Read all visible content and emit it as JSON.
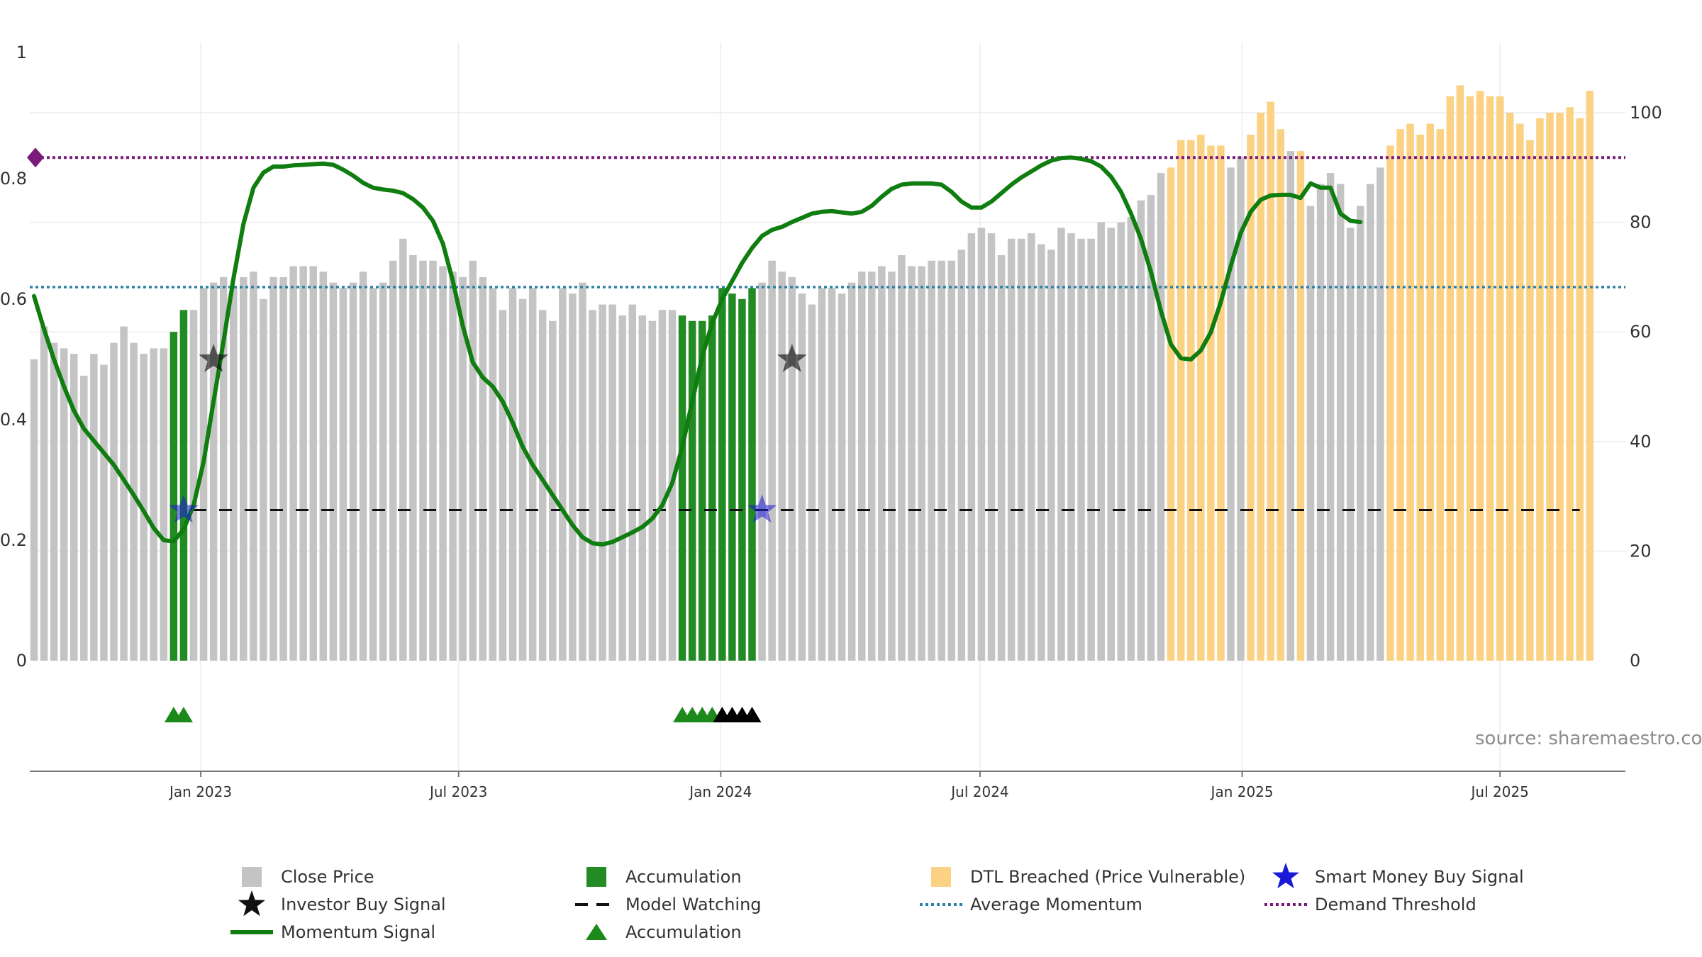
{
  "chart_data": {
    "type": "bar",
    "title": "",
    "source": "source: sharemaestro.com",
    "left_axis": {
      "range": [
        0,
        1
      ],
      "ticks": [
        {
          "v": 0,
          "label": "0"
        },
        {
          "v": 0.2,
          "label": "0.2"
        },
        {
          "v": 0.4,
          "label": "0.4"
        },
        {
          "v": 0.6,
          "label": "0.6"
        },
        {
          "v": 0.8,
          "label": "0.8"
        },
        {
          "v": 1,
          "label": "1"
        }
      ]
    },
    "right_axis": {
      "range": [
        0,
        110
      ],
      "ticks": [
        {
          "v": 0,
          "label": "0"
        },
        {
          "v": 20,
          "label": "20"
        },
        {
          "v": 40,
          "label": "40"
        },
        {
          "v": 60,
          "label": "60"
        },
        {
          "v": 80,
          "label": "80"
        },
        {
          "v": 100,
          "label": "100"
        }
      ]
    },
    "x_axis": {
      "range": [
        "2022-09-03",
        "2025-09-27"
      ],
      "ticks": [
        {
          "date": "2023-01-01",
          "label": "Jan 2023"
        },
        {
          "date": "2023-07-01",
          "label": "Jul 2023"
        },
        {
          "date": "2024-01-01",
          "label": "Jan 2024"
        },
        {
          "date": "2024-07-01",
          "label": "Jul 2024"
        },
        {
          "date": "2025-01-01",
          "label": "Jan 2025"
        },
        {
          "date": "2025-07-01",
          "label": "Jul 2025"
        }
      ]
    },
    "start_week": "2022-09-03",
    "bar_categories": {
      "g": "Close Price",
      "a": "Accumulation",
      "o": "DTL Breached (Price Vulnerable)"
    },
    "bars": [
      [
        55,
        "g"
      ],
      [
        61,
        "g"
      ],
      [
        58,
        "g"
      ],
      [
        57,
        "g"
      ],
      [
        56,
        "g"
      ],
      [
        52,
        "g"
      ],
      [
        56,
        "g"
      ],
      [
        54,
        "g"
      ],
      [
        58,
        "g"
      ],
      [
        61,
        "g"
      ],
      [
        58,
        "g"
      ],
      [
        56,
        "g"
      ],
      [
        57,
        "g"
      ],
      [
        57,
        "g"
      ],
      [
        60,
        "a"
      ],
      [
        64,
        "a"
      ],
      [
        64,
        "g"
      ],
      [
        68,
        "g"
      ],
      [
        69,
        "g"
      ],
      [
        70,
        "g"
      ],
      [
        68,
        "g"
      ],
      [
        70,
        "g"
      ],
      [
        71,
        "g"
      ],
      [
        66,
        "g"
      ],
      [
        70,
        "g"
      ],
      [
        70,
        "g"
      ],
      [
        72,
        "g"
      ],
      [
        72,
        "g"
      ],
      [
        72,
        "g"
      ],
      [
        71,
        "g"
      ],
      [
        69,
        "g"
      ],
      [
        68,
        "g"
      ],
      [
        69,
        "g"
      ],
      [
        71,
        "g"
      ],
      [
        68,
        "g"
      ],
      [
        69,
        "g"
      ],
      [
        73,
        "g"
      ],
      [
        77,
        "g"
      ],
      [
        74,
        "g"
      ],
      [
        73,
        "g"
      ],
      [
        73,
        "g"
      ],
      [
        72,
        "g"
      ],
      [
        71,
        "g"
      ],
      [
        70,
        "g"
      ],
      [
        73,
        "g"
      ],
      [
        70,
        "g"
      ],
      [
        68,
        "g"
      ],
      [
        64,
        "g"
      ],
      [
        68,
        "g"
      ],
      [
        66,
        "g"
      ],
      [
        68,
        "g"
      ],
      [
        64,
        "g"
      ],
      [
        62,
        "g"
      ],
      [
        68,
        "g"
      ],
      [
        67,
        "g"
      ],
      [
        69,
        "g"
      ],
      [
        64,
        "g"
      ],
      [
        65,
        "g"
      ],
      [
        65,
        "g"
      ],
      [
        63,
        "g"
      ],
      [
        65,
        "g"
      ],
      [
        63,
        "g"
      ],
      [
        62,
        "g"
      ],
      [
        64,
        "g"
      ],
      [
        64,
        "g"
      ],
      [
        63,
        "a"
      ],
      [
        62,
        "a"
      ],
      [
        62,
        "a"
      ],
      [
        63,
        "a"
      ],
      [
        68,
        "a"
      ],
      [
        67,
        "a"
      ],
      [
        66,
        "a"
      ],
      [
        68,
        "a"
      ],
      [
        69,
        "g"
      ],
      [
        73,
        "g"
      ],
      [
        71,
        "g"
      ],
      [
        70,
        "g"
      ],
      [
        67,
        "g"
      ],
      [
        65,
        "g"
      ],
      [
        68,
        "g"
      ],
      [
        68,
        "g"
      ],
      [
        67,
        "g"
      ],
      [
        69,
        "g"
      ],
      [
        71,
        "g"
      ],
      [
        71,
        "g"
      ],
      [
        72,
        "g"
      ],
      [
        71,
        "g"
      ],
      [
        74,
        "g"
      ],
      [
        72,
        "g"
      ],
      [
        72,
        "g"
      ],
      [
        73,
        "g"
      ],
      [
        73,
        "g"
      ],
      [
        73,
        "g"
      ],
      [
        75,
        "g"
      ],
      [
        78,
        "g"
      ],
      [
        79,
        "g"
      ],
      [
        78,
        "g"
      ],
      [
        74,
        "g"
      ],
      [
        77,
        "g"
      ],
      [
        77,
        "g"
      ],
      [
        78,
        "g"
      ],
      [
        76,
        "g"
      ],
      [
        75,
        "g"
      ],
      [
        79,
        "g"
      ],
      [
        78,
        "g"
      ],
      [
        77,
        "g"
      ],
      [
        77,
        "g"
      ],
      [
        80,
        "g"
      ],
      [
        79,
        "g"
      ],
      [
        80,
        "g"
      ],
      [
        81,
        "g"
      ],
      [
        84,
        "g"
      ],
      [
        85,
        "g"
      ],
      [
        89,
        "g"
      ],
      [
        90,
        "o"
      ],
      [
        95,
        "o"
      ],
      [
        95,
        "o"
      ],
      [
        96,
        "o"
      ],
      [
        94,
        "o"
      ],
      [
        94,
        "o"
      ],
      [
        90,
        "g"
      ],
      [
        92,
        "g"
      ],
      [
        96,
        "o"
      ],
      [
        100,
        "o"
      ],
      [
        102,
        "o"
      ],
      [
        97,
        "o"
      ],
      [
        93,
        "g"
      ],
      [
        93,
        "o"
      ],
      [
        83,
        "g"
      ],
      [
        87,
        "g"
      ],
      [
        89,
        "g"
      ],
      [
        87,
        "g"
      ],
      [
        79,
        "g"
      ],
      [
        83,
        "g"
      ],
      [
        87,
        "g"
      ],
      [
        90,
        "g"
      ],
      [
        94,
        "o"
      ],
      [
        97,
        "o"
      ],
      [
        98,
        "o"
      ],
      [
        96,
        "o"
      ],
      [
        98,
        "o"
      ],
      [
        97,
        "o"
      ],
      [
        103,
        "o"
      ],
      [
        105,
        "o"
      ],
      [
        103,
        "o"
      ],
      [
        104,
        "o"
      ],
      [
        103,
        "o"
      ],
      [
        103,
        "o"
      ],
      [
        100,
        "o"
      ],
      [
        98,
        "o"
      ],
      [
        95,
        "o"
      ],
      [
        99,
        "o"
      ],
      [
        100,
        "o"
      ],
      [
        100,
        "o"
      ],
      [
        101,
        "o"
      ],
      [
        99,
        "o"
      ],
      [
        104,
        "o"
      ]
    ],
    "momentum": [
      [
        0,
        0.605
      ],
      [
        1,
        0.55
      ],
      [
        2,
        0.5
      ],
      [
        3,
        0.455
      ],
      [
        4,
        0.415
      ],
      [
        5,
        0.385
      ],
      [
        6,
        0.365
      ],
      [
        7,
        0.345
      ],
      [
        8,
        0.325
      ],
      [
        9,
        0.3
      ],
      [
        10,
        0.275
      ],
      [
        11,
        0.248
      ],
      [
        12,
        0.22
      ],
      [
        13,
        0.2
      ],
      [
        14,
        0.198
      ],
      [
        15,
        0.218
      ],
      [
        16,
        0.258
      ],
      [
        17,
        0.33
      ],
      [
        18,
        0.43
      ],
      [
        19,
        0.53
      ],
      [
        20,
        0.635
      ],
      [
        21,
        0.725
      ],
      [
        22,
        0.785
      ],
      [
        23,
        0.81
      ],
      [
        24,
        0.82
      ],
      [
        25,
        0.82
      ],
      [
        26,
        0.822
      ],
      [
        27,
        0.823
      ],
      [
        28,
        0.824
      ],
      [
        29,
        0.825
      ],
      [
        30,
        0.823
      ],
      [
        31,
        0.815
      ],
      [
        32,
        0.805
      ],
      [
        33,
        0.793
      ],
      [
        34,
        0.785
      ],
      [
        35,
        0.782
      ],
      [
        36,
        0.78
      ],
      [
        37,
        0.776
      ],
      [
        38,
        0.766
      ],
      [
        39,
        0.752
      ],
      [
        40,
        0.73
      ],
      [
        41,
        0.692
      ],
      [
        42,
        0.63
      ],
      [
        43,
        0.555
      ],
      [
        44,
        0.495
      ],
      [
        45,
        0.47
      ],
      [
        46,
        0.455
      ],
      [
        47,
        0.43
      ],
      [
        48,
        0.395
      ],
      [
        49,
        0.355
      ],
      [
        50,
        0.325
      ],
      [
        51,
        0.3
      ],
      [
        52,
        0.275
      ],
      [
        53,
        0.25
      ],
      [
        54,
        0.225
      ],
      [
        55,
        0.205
      ],
      [
        56,
        0.195
      ],
      [
        57,
        0.193
      ],
      [
        58,
        0.197
      ],
      [
        59,
        0.205
      ],
      [
        60,
        0.213
      ],
      [
        61,
        0.222
      ],
      [
        62,
        0.236
      ],
      [
        63,
        0.258
      ],
      [
        64,
        0.295
      ],
      [
        65,
        0.355
      ],
      [
        66,
        0.43
      ],
      [
        67,
        0.505
      ],
      [
        68,
        0.56
      ],
      [
        69,
        0.6
      ],
      [
        70,
        0.63
      ],
      [
        71,
        0.66
      ],
      [
        72,
        0.685
      ],
      [
        73,
        0.705
      ],
      [
        74,
        0.715
      ],
      [
        75,
        0.72
      ],
      [
        76,
        0.728
      ],
      [
        77,
        0.735
      ],
      [
        78,
        0.742
      ],
      [
        79,
        0.745
      ],
      [
        80,
        0.746
      ],
      [
        81,
        0.744
      ],
      [
        82,
        0.742
      ],
      [
        83,
        0.745
      ],
      [
        84,
        0.755
      ],
      [
        85,
        0.77
      ],
      [
        86,
        0.783
      ],
      [
        87,
        0.79
      ],
      [
        88,
        0.792
      ],
      [
        89,
        0.792
      ],
      [
        90,
        0.792
      ],
      [
        91,
        0.79
      ],
      [
        92,
        0.778
      ],
      [
        93,
        0.762
      ],
      [
        94,
        0.752
      ],
      [
        95,
        0.752
      ],
      [
        96,
        0.762
      ],
      [
        97,
        0.776
      ],
      [
        98,
        0.79
      ],
      [
        99,
        0.802
      ],
      [
        100,
        0.812
      ],
      [
        101,
        0.822
      ],
      [
        102,
        0.83
      ],
      [
        103,
        0.834
      ],
      [
        104,
        0.835
      ],
      [
        105,
        0.833
      ],
      [
        106,
        0.829
      ],
      [
        107,
        0.82
      ],
      [
        108,
        0.803
      ],
      [
        109,
        0.778
      ],
      [
        110,
        0.742
      ],
      [
        111,
        0.7
      ],
      [
        112,
        0.645
      ],
      [
        113,
        0.58
      ],
      [
        114,
        0.525
      ],
      [
        115,
        0.502
      ],
      [
        116,
        0.5
      ],
      [
        117,
        0.515
      ],
      [
        118,
        0.545
      ],
      [
        119,
        0.595
      ],
      [
        120,
        0.655
      ],
      [
        121,
        0.71
      ],
      [
        122,
        0.745
      ],
      [
        123,
        0.765
      ],
      [
        124,
        0.772
      ],
      [
        125,
        0.773
      ],
      [
        126,
        0.773
      ],
      [
        127,
        0.768
      ],
      [
        128,
        0.792
      ],
      [
        129,
        0.785
      ],
      [
        130,
        0.785
      ],
      [
        131,
        0.742
      ],
      [
        132,
        0.73
      ],
      [
        133,
        0.728
      ]
    ],
    "momentum_axis": "left",
    "average_momentum": 0.62,
    "demand_threshold": 0.835,
    "model_watching_level": 0.25,
    "model_watching_range": [
      16,
      155
    ],
    "smart_money_signals": [
      [
        15,
        0.25
      ],
      [
        73,
        0.25
      ]
    ],
    "investor_buy_signals": [
      [
        18,
        0.5
      ],
      [
        76,
        0.5
      ]
    ],
    "accumulation_triangles": {
      "green": [
        14,
        15,
        65,
        66,
        67,
        68
      ],
      "black": [
        69,
        70,
        71,
        72
      ]
    },
    "legend": [
      {
        "key": "close",
        "label": "Close Price"
      },
      {
        "key": "accum",
        "label": "Accumulation"
      },
      {
        "key": "dtl",
        "label": "DTL Breached (Price Vulnerable)"
      },
      {
        "key": "smart",
        "label": "Smart Money Buy Signal"
      },
      {
        "key": "investor",
        "label": "Investor Buy Signal"
      },
      {
        "key": "watch",
        "label": "Model Watching"
      },
      {
        "key": "avg",
        "label": "Average Momentum"
      },
      {
        "key": "demand",
        "label": "Demand Threshold"
      },
      {
        "key": "momentum",
        "label": "Momentum Signal"
      },
      {
        "key": "accum_tri",
        "label": "Accumulation"
      }
    ],
    "colors": {
      "close": "#c4c4c4",
      "accum": "#238b23",
      "dtl": "#fbd283",
      "momentum": "#0f7d0f",
      "avg": "#2e7fa6",
      "demand": "#7a1a7a",
      "watch": "#111111",
      "smart": "#1a1ad6",
      "investor": "#111111",
      "triangle_green": "#1b8a1b",
      "triangle_black": "#000000"
    }
  }
}
